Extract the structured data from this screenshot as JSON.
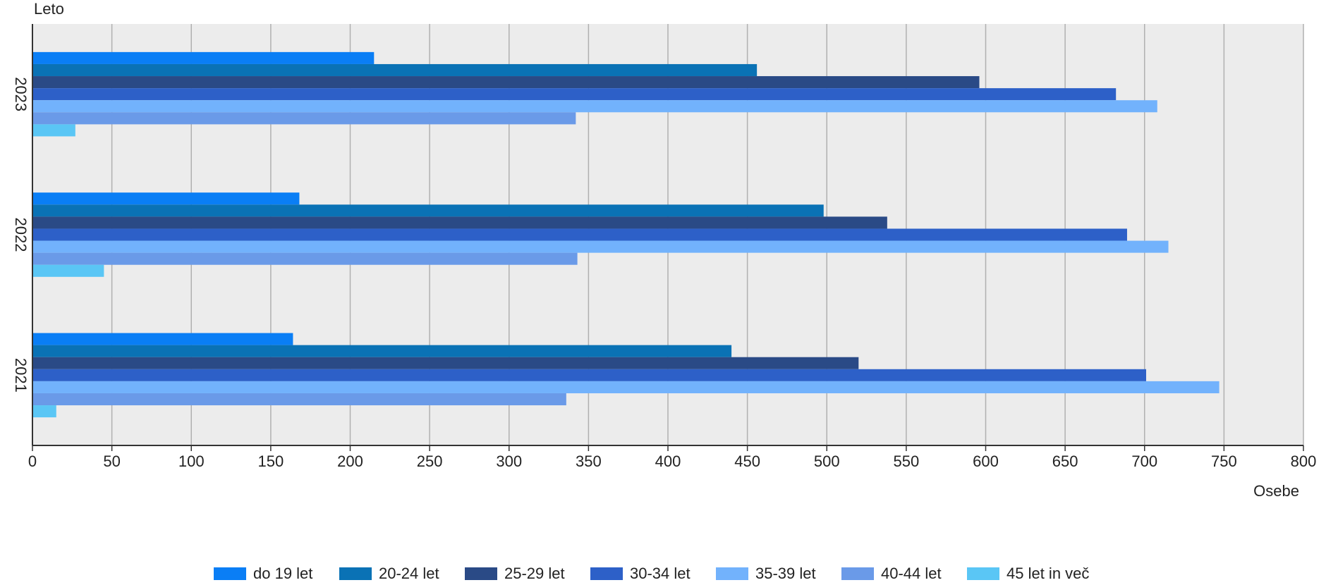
{
  "chart_data": {
    "type": "hbar",
    "y_axis_label": "Leto",
    "x_axis_label": "Osebe",
    "categories": [
      "2023",
      "2022",
      "2021"
    ],
    "series": [
      {
        "name": "do 19 let",
        "color": "#0a7ef5",
        "values": [
          215,
          168,
          164
        ]
      },
      {
        "name": "20-24 let",
        "color": "#0a72b5",
        "values": [
          456,
          498,
          440
        ]
      },
      {
        "name": "25-29 let",
        "color": "#2a4a86",
        "values": [
          596,
          538,
          520
        ]
      },
      {
        "name": "30-34 let",
        "color": "#2d60c8",
        "values": [
          682,
          689,
          701
        ]
      },
      {
        "name": "35-39 let",
        "color": "#72b2fc",
        "values": [
          708,
          715,
          747
        ]
      },
      {
        "name": "40-44 let",
        "color": "#6a9ae8",
        "values": [
          342,
          343,
          336
        ]
      },
      {
        "name": "45 let in več",
        "color": "#5ac6f5",
        "values": [
          27,
          45,
          15
        ]
      }
    ],
    "xlim": [
      0,
      800
    ],
    "xticks": [
      0,
      50,
      100,
      150,
      200,
      250,
      300,
      350,
      400,
      450,
      500,
      550,
      600,
      650,
      700,
      750,
      800
    ],
    "grid": true
  }
}
